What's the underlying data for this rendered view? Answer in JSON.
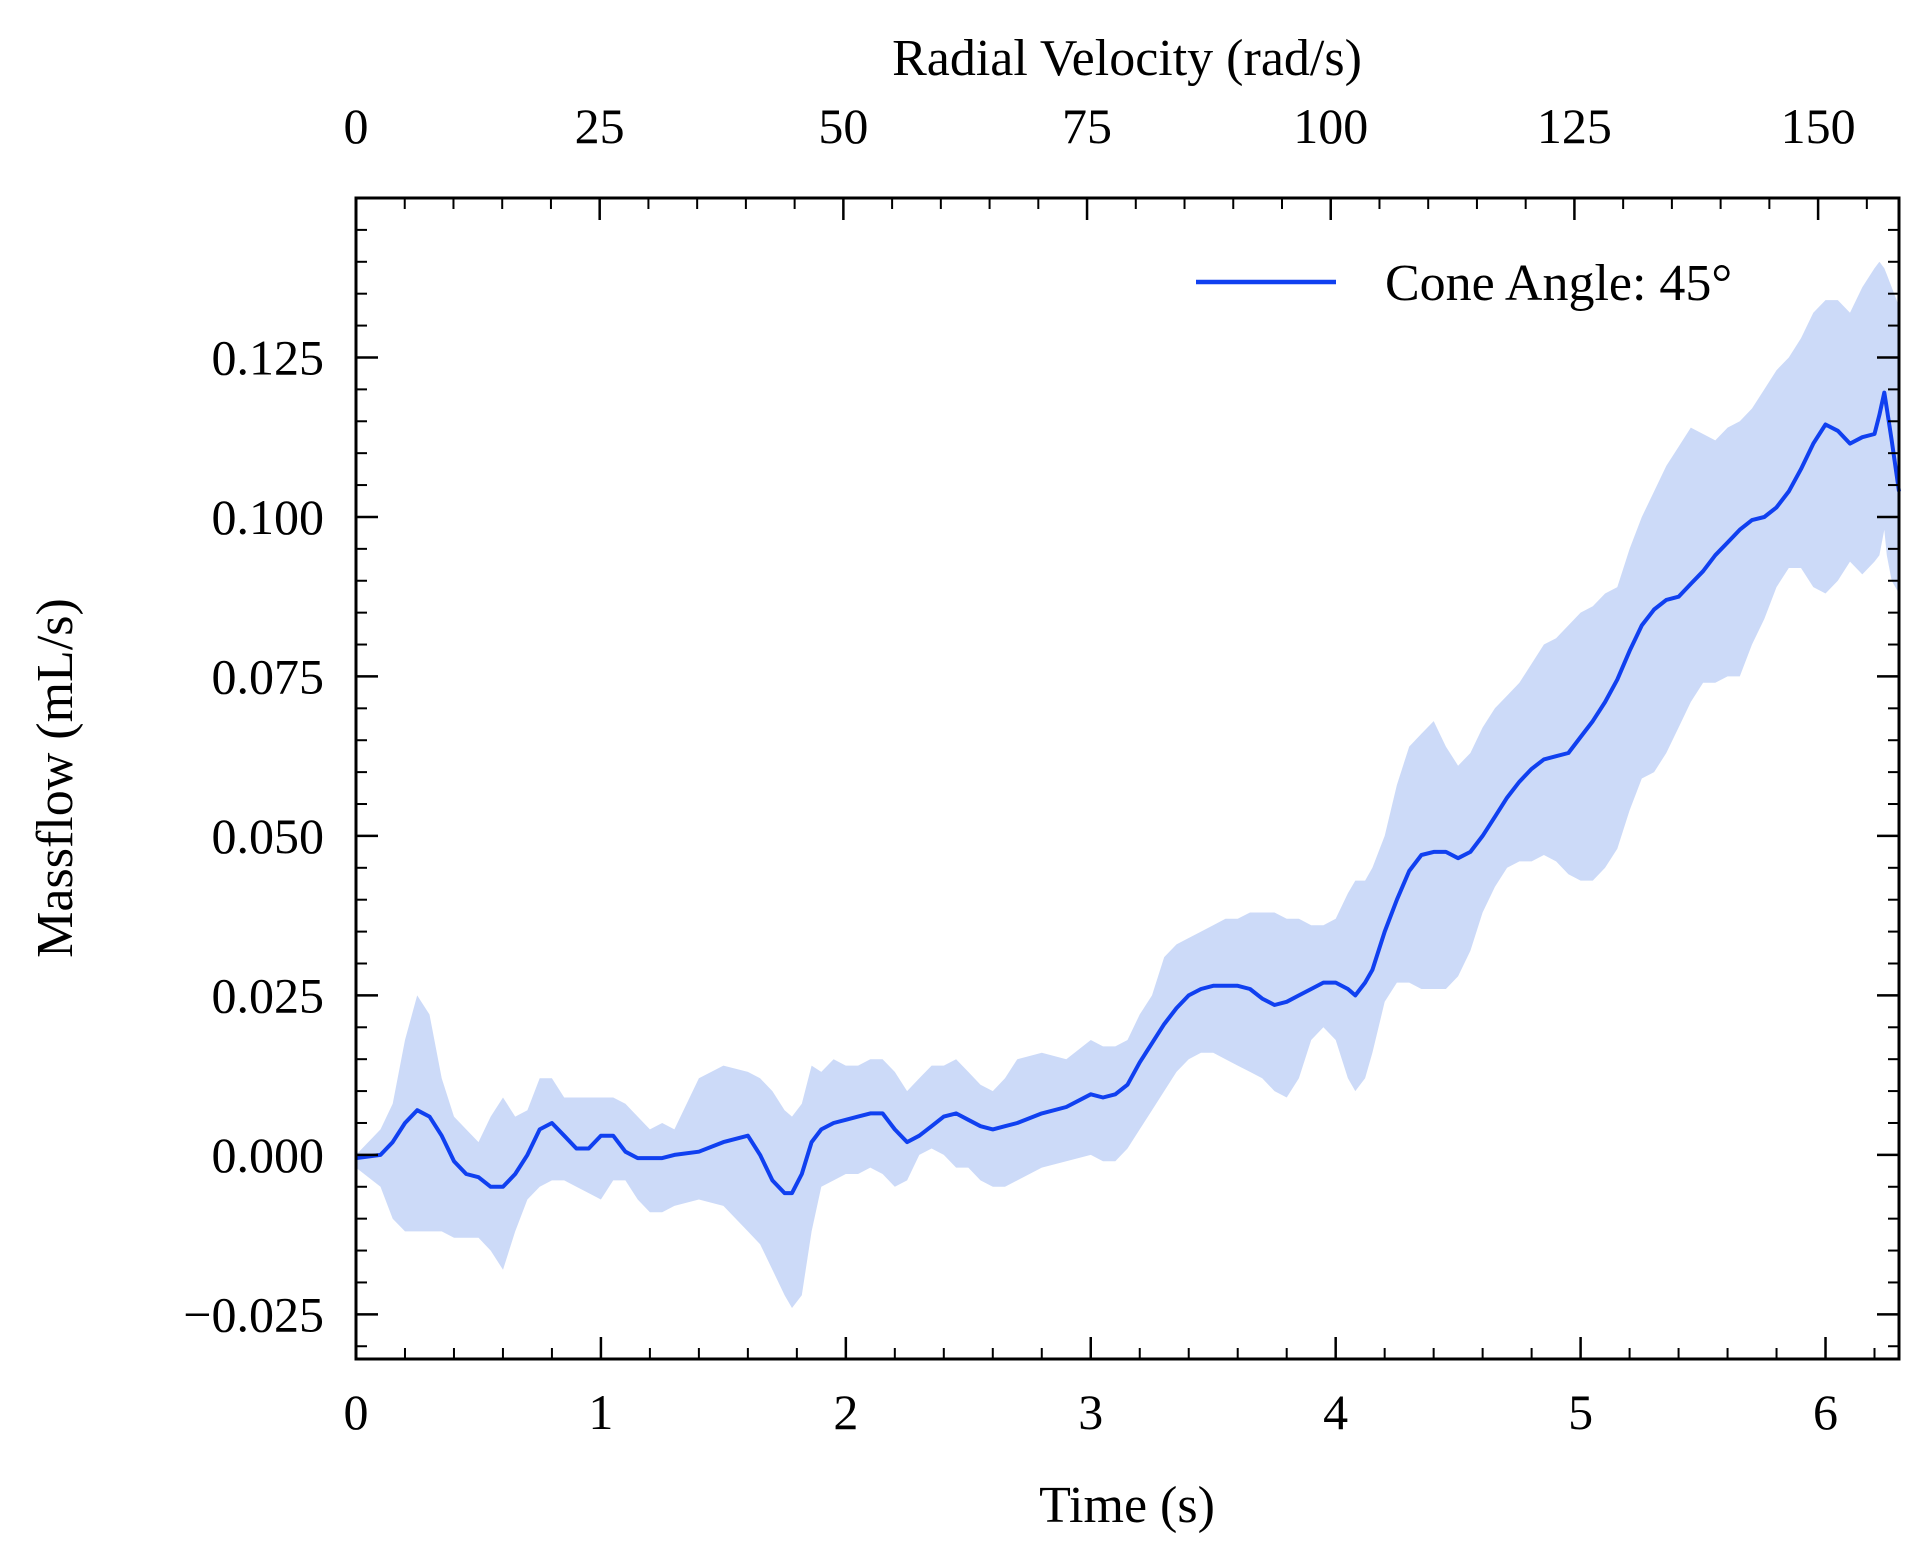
{
  "chart_data": {
    "type": "line",
    "xlabel": "Time (s)",
    "ylabel": "Massflow (mL/s)",
    "secondary_xlabel": "Radial Velocity (rad/s)",
    "xlim": [
      0,
      6.3
    ],
    "ylim": [
      -0.032,
      0.15
    ],
    "secondary_xlim": [
      0,
      158.3
    ],
    "x_ticks": [
      0,
      1,
      2,
      3,
      4,
      5,
      6
    ],
    "x_tick_labels": [
      "0",
      "1",
      "2",
      "3",
      "4",
      "5",
      "6"
    ],
    "y_ticks": [
      -0.025,
      0.0,
      0.025,
      0.05,
      0.075,
      0.1,
      0.125
    ],
    "y_tick_labels": [
      "−0.025",
      "0.000",
      "0.025",
      "0.050",
      "0.075",
      "0.100",
      "0.125"
    ],
    "secondary_x_ticks": [
      0,
      25,
      50,
      75,
      100,
      125,
      150
    ],
    "secondary_x_tick_labels": [
      "0",
      "25",
      "50",
      "75",
      "100",
      "125",
      "150"
    ],
    "grid": false,
    "legend_position": "top-right",
    "series": [
      {
        "name": "Cone Angle: 45°",
        "color": "#1040f0",
        "band_color": "#ccdaf8",
        "x": [
          0.0,
          0.1,
          0.15,
          0.2,
          0.25,
          0.3,
          0.35,
          0.4,
          0.45,
          0.5,
          0.55,
          0.6,
          0.65,
          0.7,
          0.75,
          0.8,
          0.85,
          0.9,
          0.95,
          1.0,
          1.05,
          1.1,
          1.15,
          1.2,
          1.25,
          1.3,
          1.4,
          1.5,
          1.6,
          1.65,
          1.7,
          1.75,
          1.78,
          1.82,
          1.86,
          1.9,
          1.95,
          2.0,
          2.05,
          2.1,
          2.15,
          2.2,
          2.25,
          2.3,
          2.35,
          2.4,
          2.45,
          2.5,
          2.55,
          2.6,
          2.65,
          2.7,
          2.8,
          2.9,
          3.0,
          3.05,
          3.1,
          3.15,
          3.2,
          3.25,
          3.3,
          3.35,
          3.4,
          3.45,
          3.5,
          3.55,
          3.6,
          3.65,
          3.7,
          3.75,
          3.8,
          3.85,
          3.9,
          3.95,
          4.0,
          4.05,
          4.08,
          4.12,
          4.15,
          4.2,
          4.25,
          4.3,
          4.35,
          4.4,
          4.45,
          4.5,
          4.55,
          4.6,
          4.65,
          4.7,
          4.75,
          4.8,
          4.85,
          4.9,
          4.95,
          5.0,
          5.05,
          5.1,
          5.15,
          5.2,
          5.25,
          5.3,
          5.35,
          5.4,
          5.45,
          5.5,
          5.55,
          5.6,
          5.65,
          5.7,
          5.75,
          5.8,
          5.85,
          5.9,
          5.95,
          6.0,
          6.05,
          6.1,
          6.15,
          6.2,
          6.22,
          6.24,
          6.25,
          6.27,
          6.3
        ],
        "y": [
          -0.0005,
          0.0,
          0.002,
          0.005,
          0.007,
          0.006,
          0.003,
          -0.001,
          -0.003,
          -0.0035,
          -0.005,
          -0.005,
          -0.003,
          0.0,
          0.004,
          0.005,
          0.003,
          0.001,
          0.001,
          0.003,
          0.003,
          0.0005,
          -0.0005,
          -0.0005,
          -0.0005,
          0.0,
          0.0005,
          0.002,
          0.003,
          0.0,
          -0.004,
          -0.006,
          -0.006,
          -0.003,
          0.002,
          0.004,
          0.005,
          0.0055,
          0.006,
          0.0065,
          0.0065,
          0.004,
          0.002,
          0.003,
          0.0045,
          0.006,
          0.0065,
          0.0055,
          0.0045,
          0.004,
          0.0045,
          0.005,
          0.0065,
          0.0075,
          0.0095,
          0.009,
          0.0095,
          0.011,
          0.0145,
          0.0175,
          0.0205,
          0.023,
          0.025,
          0.026,
          0.0265,
          0.0265,
          0.0265,
          0.026,
          0.0245,
          0.0235,
          0.024,
          0.025,
          0.026,
          0.027,
          0.027,
          0.026,
          0.025,
          0.027,
          0.029,
          0.035,
          0.04,
          0.0445,
          0.047,
          0.0475,
          0.0475,
          0.0465,
          0.0475,
          0.05,
          0.053,
          0.056,
          0.0585,
          0.0605,
          0.062,
          0.0625,
          0.063,
          0.0655,
          0.068,
          0.071,
          0.0745,
          0.079,
          0.083,
          0.0855,
          0.087,
          0.0875,
          0.0895,
          0.0915,
          0.094,
          0.096,
          0.098,
          0.0995,
          0.1,
          0.1015,
          0.104,
          0.1075,
          0.1115,
          0.1145,
          0.1135,
          0.1115,
          0.1125,
          0.113,
          0.116,
          0.1195,
          0.117,
          0.112,
          0.104
        ],
        "upper": [
          0.0,
          0.004,
          0.008,
          0.018,
          0.025,
          0.022,
          0.012,
          0.006,
          0.004,
          0.002,
          0.006,
          0.009,
          0.006,
          0.007,
          0.012,
          0.012,
          0.009,
          0.009,
          0.009,
          0.009,
          0.009,
          0.008,
          0.006,
          0.004,
          0.005,
          0.004,
          0.012,
          0.014,
          0.013,
          0.012,
          0.01,
          0.007,
          0.006,
          0.008,
          0.014,
          0.013,
          0.015,
          0.014,
          0.014,
          0.015,
          0.015,
          0.013,
          0.01,
          0.012,
          0.014,
          0.014,
          0.015,
          0.013,
          0.011,
          0.01,
          0.012,
          0.015,
          0.016,
          0.015,
          0.018,
          0.017,
          0.017,
          0.018,
          0.022,
          0.025,
          0.031,
          0.033,
          0.034,
          0.035,
          0.036,
          0.037,
          0.037,
          0.038,
          0.038,
          0.038,
          0.037,
          0.037,
          0.036,
          0.036,
          0.037,
          0.041,
          0.043,
          0.043,
          0.045,
          0.05,
          0.058,
          0.064,
          0.066,
          0.068,
          0.064,
          0.061,
          0.063,
          0.067,
          0.07,
          0.072,
          0.074,
          0.077,
          0.08,
          0.081,
          0.083,
          0.085,
          0.086,
          0.088,
          0.089,
          0.095,
          0.1,
          0.104,
          0.108,
          0.111,
          0.114,
          0.113,
          0.112,
          0.114,
          0.115,
          0.117,
          0.12,
          0.123,
          0.125,
          0.128,
          0.132,
          0.134,
          0.134,
          0.132,
          0.136,
          0.139,
          0.14,
          0.139,
          0.138,
          0.136,
          0.133
        ],
        "lower": [
          -0.002,
          -0.005,
          -0.01,
          -0.012,
          -0.012,
          -0.012,
          -0.012,
          -0.013,
          -0.013,
          -0.013,
          -0.015,
          -0.018,
          -0.012,
          -0.007,
          -0.005,
          -0.004,
          -0.004,
          -0.005,
          -0.006,
          -0.007,
          -0.004,
          -0.004,
          -0.007,
          -0.009,
          -0.009,
          -0.008,
          -0.007,
          -0.008,
          -0.012,
          -0.014,
          -0.018,
          -0.022,
          -0.024,
          -0.022,
          -0.012,
          -0.005,
          -0.004,
          -0.003,
          -0.003,
          -0.002,
          -0.003,
          -0.005,
          -0.004,
          0.0,
          0.001,
          0.0,
          -0.002,
          -0.002,
          -0.004,
          -0.005,
          -0.005,
          -0.004,
          -0.002,
          -0.001,
          0.0,
          -0.001,
          -0.001,
          0.001,
          0.004,
          0.007,
          0.01,
          0.013,
          0.015,
          0.016,
          0.016,
          0.015,
          0.014,
          0.013,
          0.012,
          0.01,
          0.009,
          0.012,
          0.018,
          0.02,
          0.018,
          0.012,
          0.01,
          0.012,
          0.016,
          0.024,
          0.027,
          0.027,
          0.026,
          0.026,
          0.026,
          0.028,
          0.032,
          0.038,
          0.042,
          0.045,
          0.046,
          0.046,
          0.047,
          0.046,
          0.044,
          0.043,
          0.043,
          0.045,
          0.048,
          0.054,
          0.059,
          0.06,
          0.063,
          0.067,
          0.071,
          0.074,
          0.074,
          0.075,
          0.075,
          0.08,
          0.084,
          0.089,
          0.092,
          0.092,
          0.089,
          0.088,
          0.09,
          0.093,
          0.091,
          0.093,
          0.094,
          0.098,
          0.094,
          0.09,
          0.088
        ]
      }
    ]
  }
}
